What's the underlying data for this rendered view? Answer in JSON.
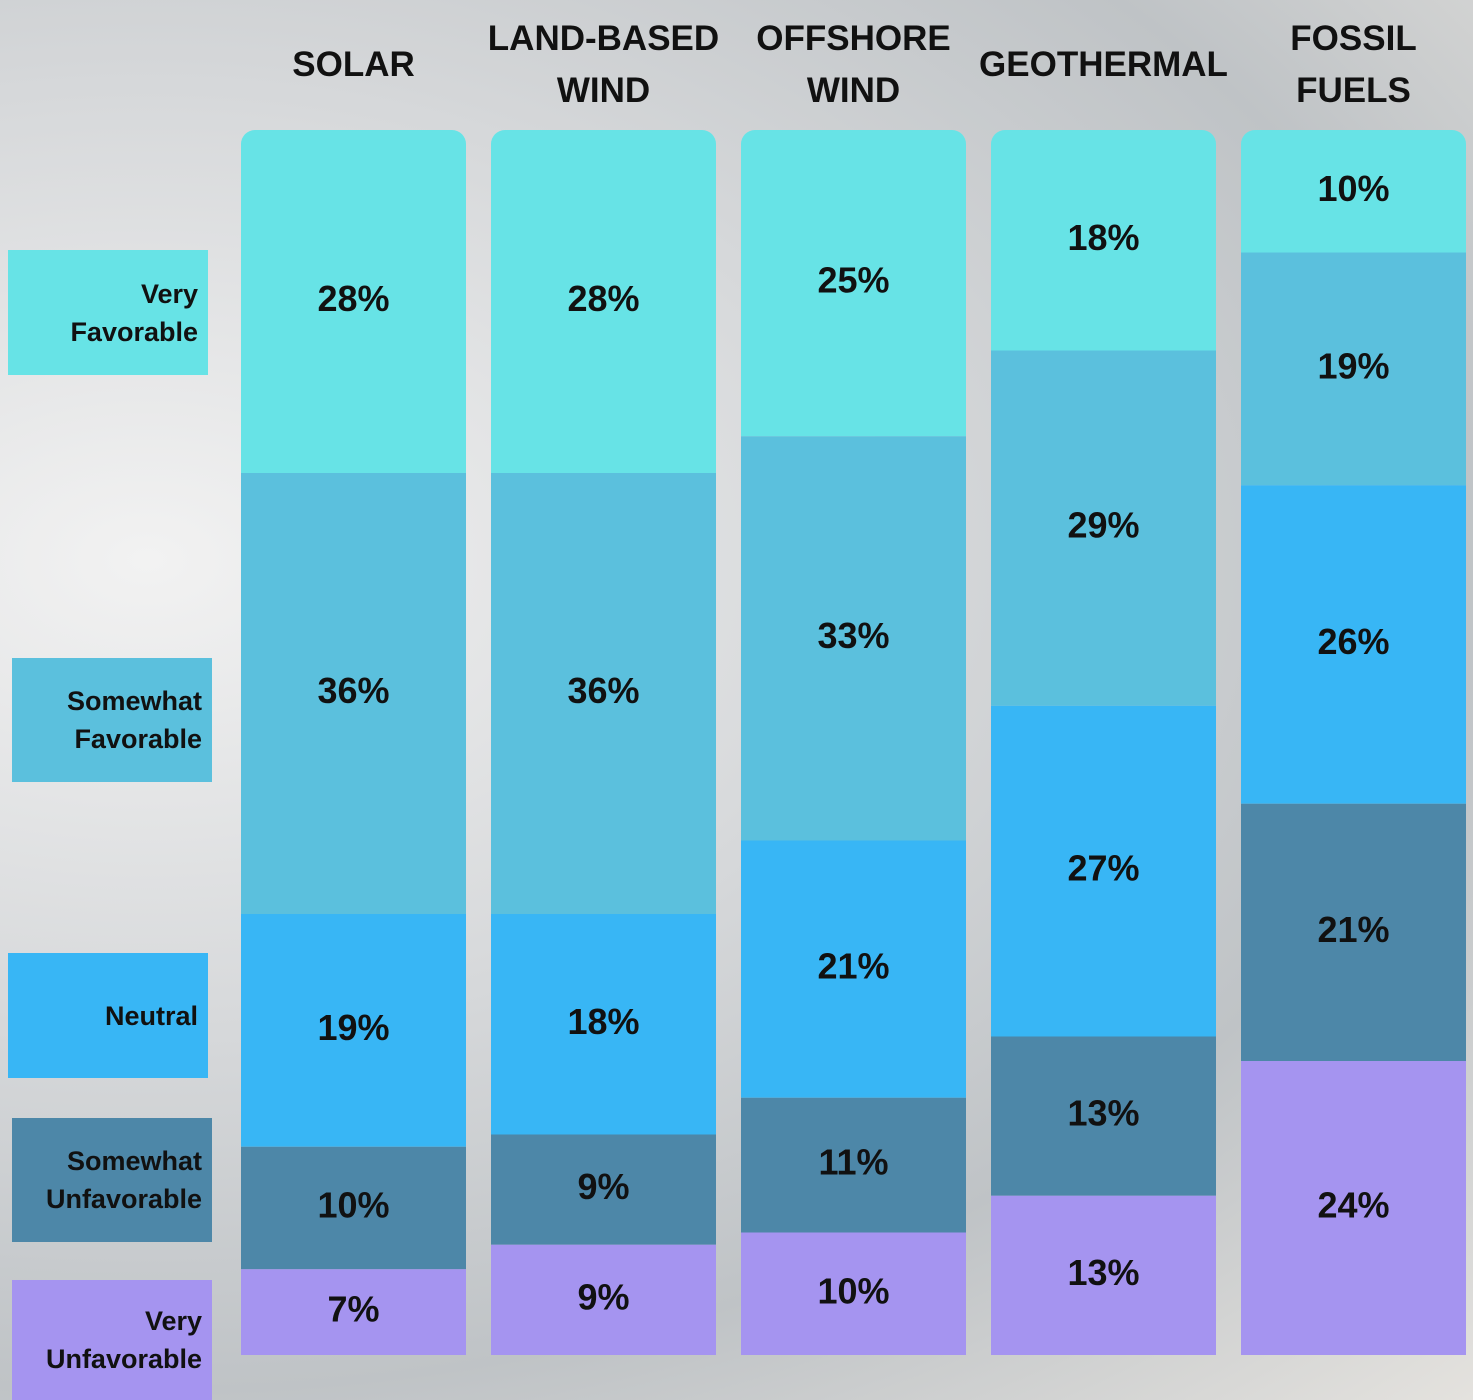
{
  "chart_data": {
    "type": "stacked_bar",
    "categories": [
      "SOLAR",
      "LAND-BASED WIND",
      "OFFSHORE WIND",
      "GEOTHERMAL",
      "FOSSIL FUELS"
    ],
    "series": [
      {
        "name": "Very Favorable",
        "color": "#67e3e6",
        "values": [
          28,
          28,
          25,
          18,
          10
        ],
        "value_labels": [
          "28%",
          "28%",
          "25%",
          "18%",
          "10%"
        ]
      },
      {
        "name": "Somewhat Favorable",
        "color": "#5bc0dd",
        "values": [
          36,
          36,
          33,
          29,
          19
        ],
        "value_labels": [
          "36%",
          "36%",
          "33%",
          "29%",
          "19%"
        ]
      },
      {
        "name": "Neutral",
        "color": "#38b6f5",
        "values": [
          19,
          18,
          21,
          27,
          26
        ],
        "value_labels": [
          "19%",
          "18%",
          "21%",
          "27%",
          "26%"
        ]
      },
      {
        "name": "Somewhat Unfavorable",
        "color": "#4d87a8",
        "values": [
          10,
          9,
          11,
          13,
          21
        ],
        "value_labels": [
          "10%",
          "9%",
          "11%",
          "13%",
          "21%"
        ]
      },
      {
        "name": "Very Unfavorable",
        "color": "#a594f0",
        "values": [
          7,
          9,
          10,
          13,
          24
        ],
        "value_labels": [
          "7%",
          "9%",
          "10%",
          "13%",
          "24%"
        ]
      }
    ]
  }
}
